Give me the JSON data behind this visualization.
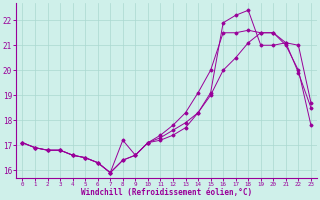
{
  "xlabel": "Windchill (Refroidissement éolien,°C)",
  "background_color": "#cff0ea",
  "grid_color": "#aad8d0",
  "line_color": "#990099",
  "x_values": [
    0,
    1,
    2,
    3,
    4,
    5,
    6,
    7,
    8,
    9,
    10,
    11,
    12,
    13,
    14,
    15,
    16,
    17,
    18,
    19,
    20,
    21,
    22,
    23
  ],
  "series1": [
    17.1,
    16.9,
    16.8,
    16.8,
    16.6,
    16.5,
    16.3,
    15.9,
    16.4,
    16.6,
    17.1,
    17.3,
    17.6,
    17.9,
    18.3,
    19.1,
    21.9,
    22.2,
    22.4,
    21.0,
    21.0,
    21.1,
    19.9,
    18.5
  ],
  "series2": [
    17.1,
    16.9,
    16.8,
    16.8,
    16.6,
    16.5,
    16.3,
    15.9,
    16.4,
    16.6,
    17.1,
    17.4,
    17.8,
    18.3,
    19.1,
    20.0,
    21.5,
    21.5,
    21.6,
    21.5,
    21.5,
    21.1,
    21.0,
    18.7
  ],
  "series3": [
    17.1,
    16.9,
    16.8,
    16.8,
    16.6,
    16.5,
    16.3,
    15.9,
    17.2,
    16.6,
    17.1,
    17.2,
    17.4,
    17.7,
    18.3,
    19.0,
    20.0,
    20.5,
    21.1,
    21.5,
    21.5,
    21.0,
    20.0,
    17.8
  ],
  "ylim": [
    15.7,
    22.7
  ],
  "yticks": [
    16,
    17,
    18,
    19,
    20,
    21,
    22
  ],
  "xlim": [
    -0.5,
    23.5
  ]
}
